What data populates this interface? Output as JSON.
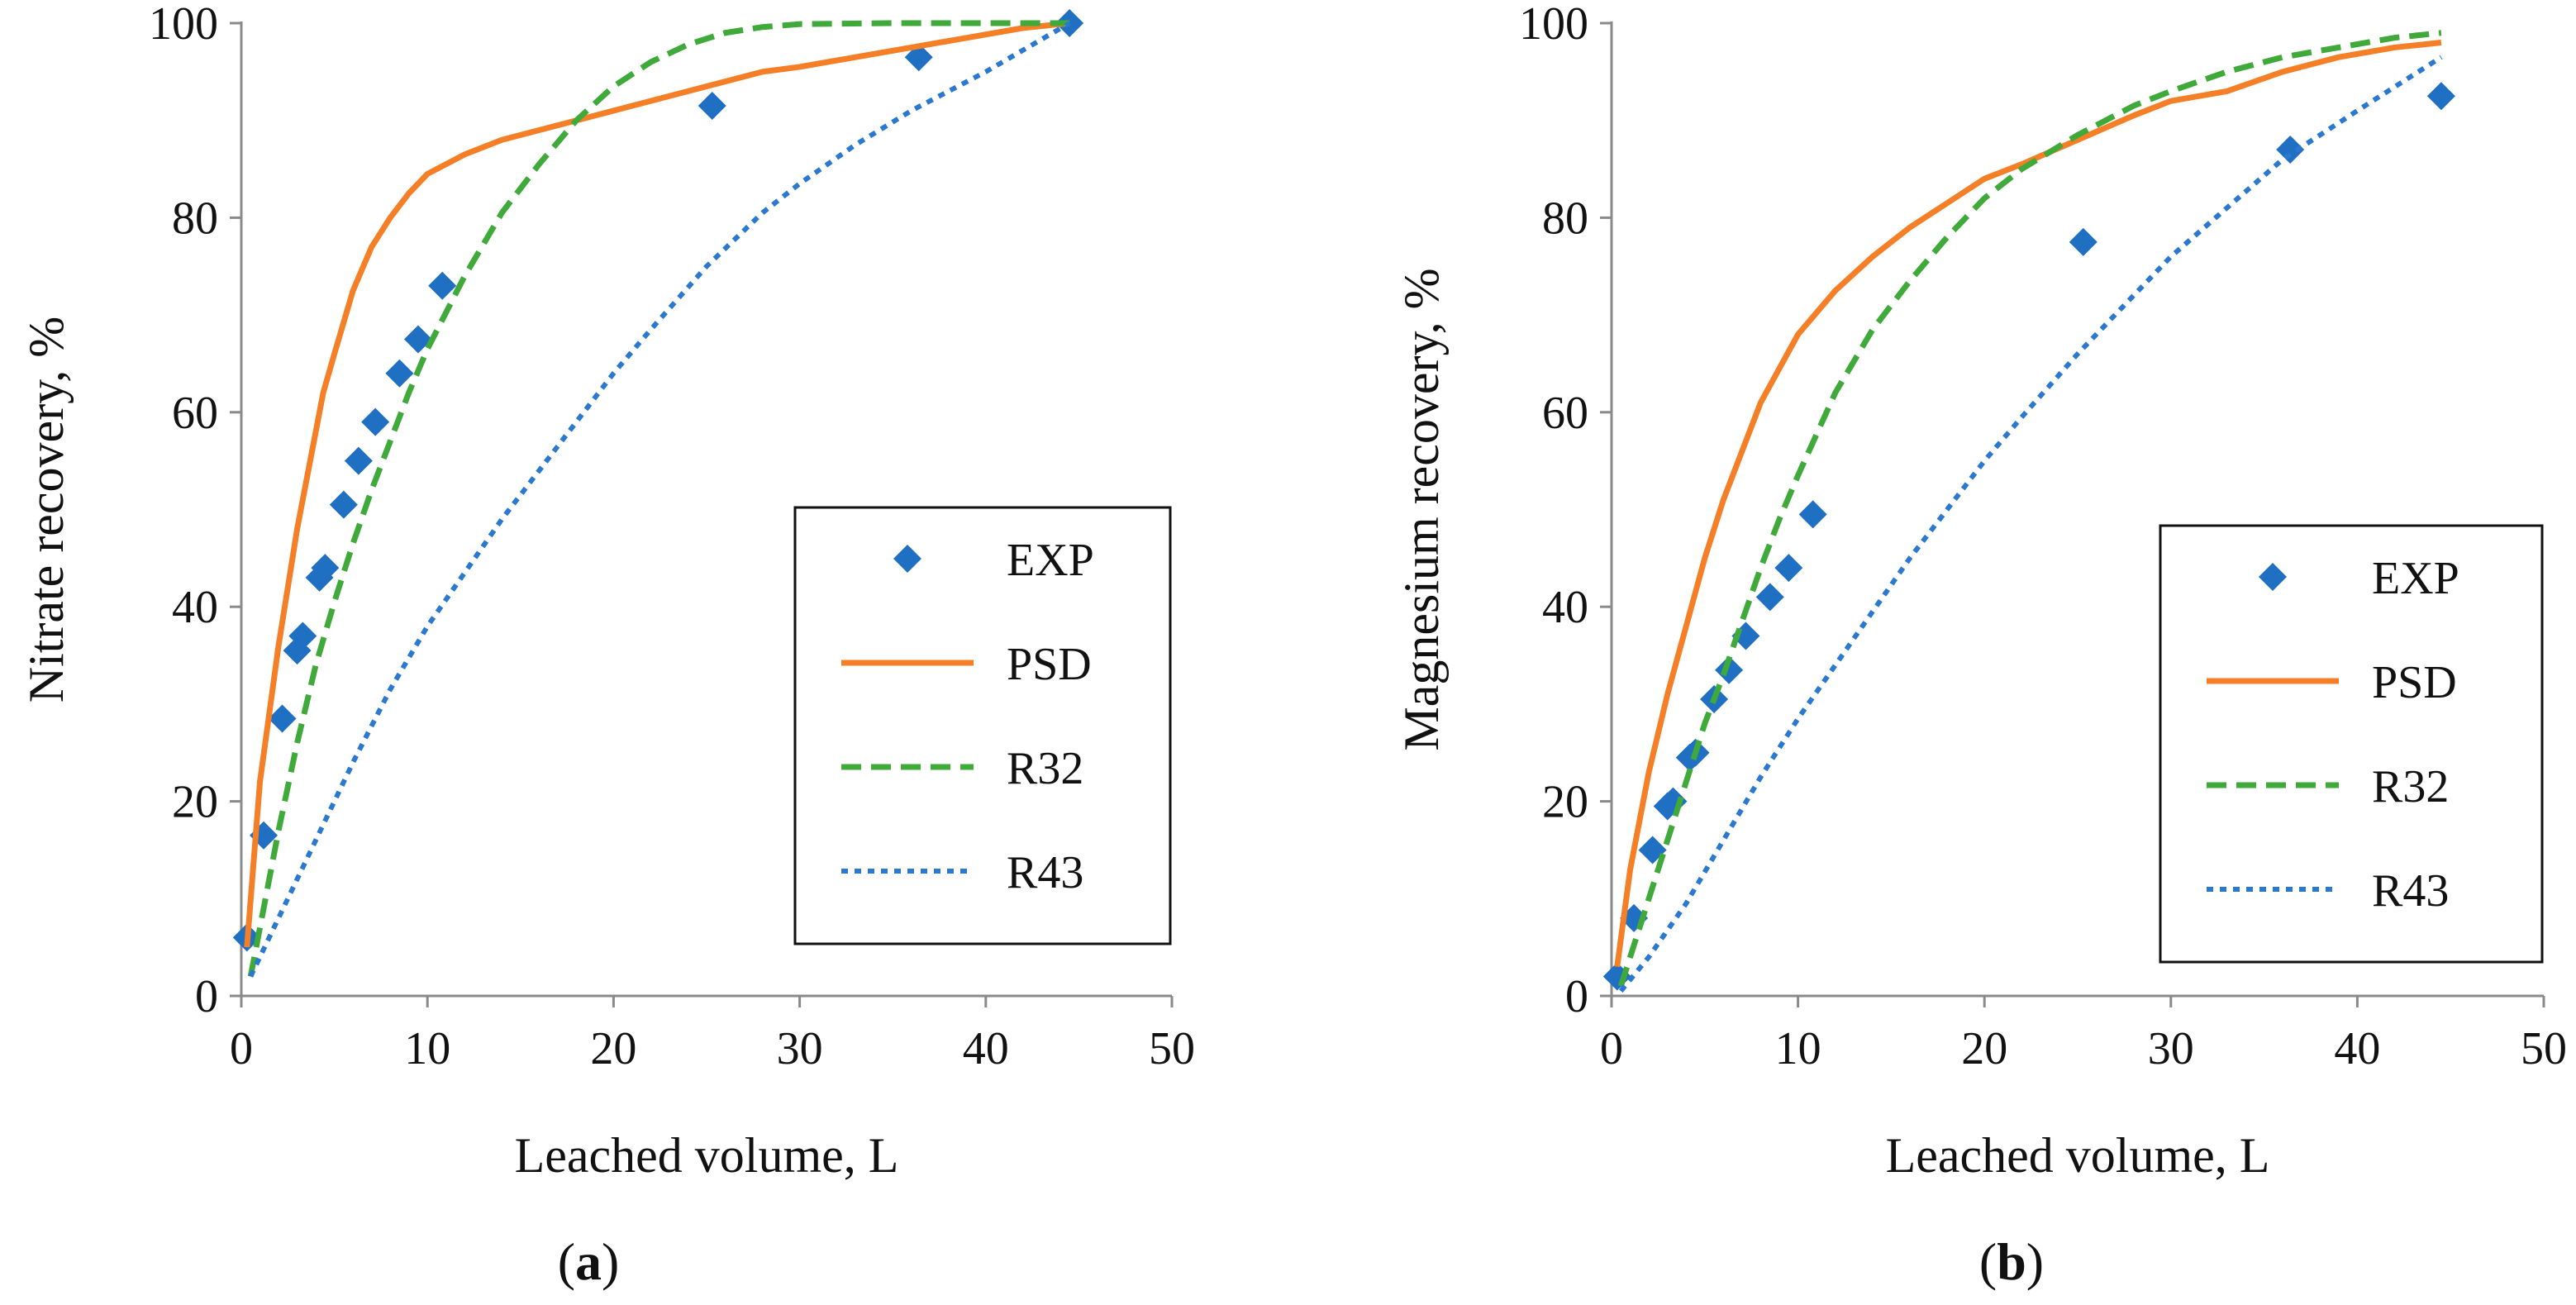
{
  "colors": {
    "exp": "#1f6fc2",
    "psd": "#f47f27",
    "r32": "#3faa3a",
    "r43": "#2a78cf"
  },
  "chart_data": [
    {
      "type": "line",
      "panel_label": {
        "open": "(",
        "letter": "a",
        "close": ")"
      },
      "xlabel": "Leached volume, L",
      "ylabel": "Nitrate recovery, %",
      "xlim": [
        0,
        50
      ],
      "ylim": [
        0,
        100
      ],
      "xticks": [
        0,
        10,
        20,
        30,
        40,
        50
      ],
      "yticks": [
        0,
        20,
        40,
        60,
        80,
        100
      ],
      "legend_position": "bottom-right",
      "series": [
        {
          "name": "EXP",
          "style": "markers",
          "x": [
            0.3,
            1.2,
            2.2,
            3.0,
            3.3,
            4.2,
            4.5,
            5.5,
            6.3,
            7.2,
            8.5,
            9.5,
            10.8,
            25.3,
            36.4,
            44.5
          ],
          "y": [
            6,
            16.5,
            28.5,
            35.5,
            37,
            43,
            44,
            50.5,
            55,
            59,
            64,
            67.5,
            73,
            91.5,
            96.5,
            100
          ]
        },
        {
          "name": "PSD",
          "style": "solid",
          "x": [
            0.3,
            1,
            2,
            3,
            4,
            4.4,
            5,
            6,
            7,
            8,
            9,
            10,
            11,
            12,
            14,
            16,
            18,
            20,
            22,
            25,
            28,
            30,
            33,
            36,
            39,
            42,
            44.5
          ],
          "y": [
            5,
            22,
            36,
            48,
            58,
            62,
            66,
            72.5,
            77,
            80,
            82.5,
            84.5,
            85.5,
            86.5,
            88,
            89,
            90,
            91,
            92,
            93.5,
            95,
            95.5,
            96.5,
            97.5,
            98.5,
            99.5,
            100
          ]
        },
        {
          "name": "R32",
          "style": "dashed",
          "x": [
            0.5,
            1,
            2,
            3,
            4,
            5,
            6,
            7,
            8,
            9,
            10,
            12,
            14,
            16,
            18,
            20,
            22,
            24,
            26,
            28,
            30,
            35,
            40,
            44.5
          ],
          "y": [
            2,
            7,
            17,
            26,
            34,
            40.5,
            46.5,
            52,
            57,
            62,
            66.5,
            74,
            80.5,
            85.5,
            90,
            93.5,
            96,
            97.8,
            99,
            99.6,
            99.9,
            100,
            100,
            100
          ]
        },
        {
          "name": "R43",
          "style": "dotted",
          "x": [
            0.5,
            2,
            4,
            6,
            8,
            10,
            12,
            14,
            16,
            18,
            20,
            22,
            25,
            28,
            30,
            33,
            36,
            40,
            44.5
          ],
          "y": [
            2,
            8,
            16,
            24,
            31.5,
            38,
            43.5,
            49,
            54,
            59,
            64,
            68.5,
            75,
            80.5,
            83.5,
            87.5,
            91,
            95,
            100
          ]
        }
      ]
    },
    {
      "type": "line",
      "panel_label": {
        "open": "(",
        "letter": "b",
        "close": ")"
      },
      "xlabel": "Leached volume, L",
      "ylabel": "Magnesium recovery, %",
      "xlim": [
        0,
        50
      ],
      "ylim": [
        0,
        100
      ],
      "xticks": [
        0,
        10,
        20,
        30,
        40,
        50
      ],
      "yticks": [
        0,
        20,
        40,
        60,
        80,
        100
      ],
      "legend_position": "bottom-right",
      "series": [
        {
          "name": "EXP",
          "style": "markers",
          "x": [
            0.3,
            1.2,
            2.2,
            3.0,
            3.3,
            4.2,
            4.5,
            5.5,
            6.3,
            7.2,
            8.5,
            9.5,
            10.8,
            25.3,
            36.4,
            44.5
          ],
          "y": [
            2,
            8,
            15,
            19.5,
            20,
            24.5,
            25,
            30.5,
            33.5,
            37,
            41,
            44,
            49.5,
            77.5,
            87,
            92.5
          ]
        },
        {
          "name": "PSD",
          "style": "solid",
          "x": [
            0.3,
            1,
            2,
            3,
            4,
            5,
            6,
            7,
            8,
            9,
            10,
            12,
            14,
            16,
            18,
            20,
            22,
            25,
            28,
            30,
            33,
            36,
            39,
            42,
            44.5
          ],
          "y": [
            3,
            13,
            23,
            31,
            38,
            45,
            51,
            56,
            61,
            64.5,
            68,
            72.5,
            76,
            79,
            81.5,
            84,
            85.5,
            88,
            90.5,
            92,
            93,
            95,
            96.5,
            97.5,
            98
          ]
        },
        {
          "name": "R32",
          "style": "dashed",
          "x": [
            0.5,
            1,
            2,
            3,
            4,
            5,
            6,
            7,
            8,
            9,
            10,
            12,
            14,
            16,
            18,
            20,
            22,
            25,
            28,
            30,
            33,
            36,
            39,
            42,
            44.5
          ],
          "y": [
            1,
            4,
            10,
            16,
            22,
            28,
            33,
            38.5,
            44,
            49,
            53.5,
            62,
            68.5,
            73.5,
            78,
            82,
            85,
            88.5,
            91.5,
            93,
            95,
            96.5,
            97.5,
            98.5,
            99
          ]
        },
        {
          "name": "R43",
          "style": "dotted",
          "x": [
            0.5,
            2,
            4,
            6,
            8,
            10,
            12,
            14,
            16,
            18,
            20,
            22,
            25,
            28,
            30,
            33,
            36,
            40,
            44.5
          ],
          "y": [
            0.5,
            4,
            9.5,
            16,
            22.5,
            28.5,
            34,
            39.5,
            45,
            50,
            55,
            59.5,
            66,
            72,
            76,
            81,
            86,
            91,
            96.5
          ]
        }
      ]
    }
  ]
}
